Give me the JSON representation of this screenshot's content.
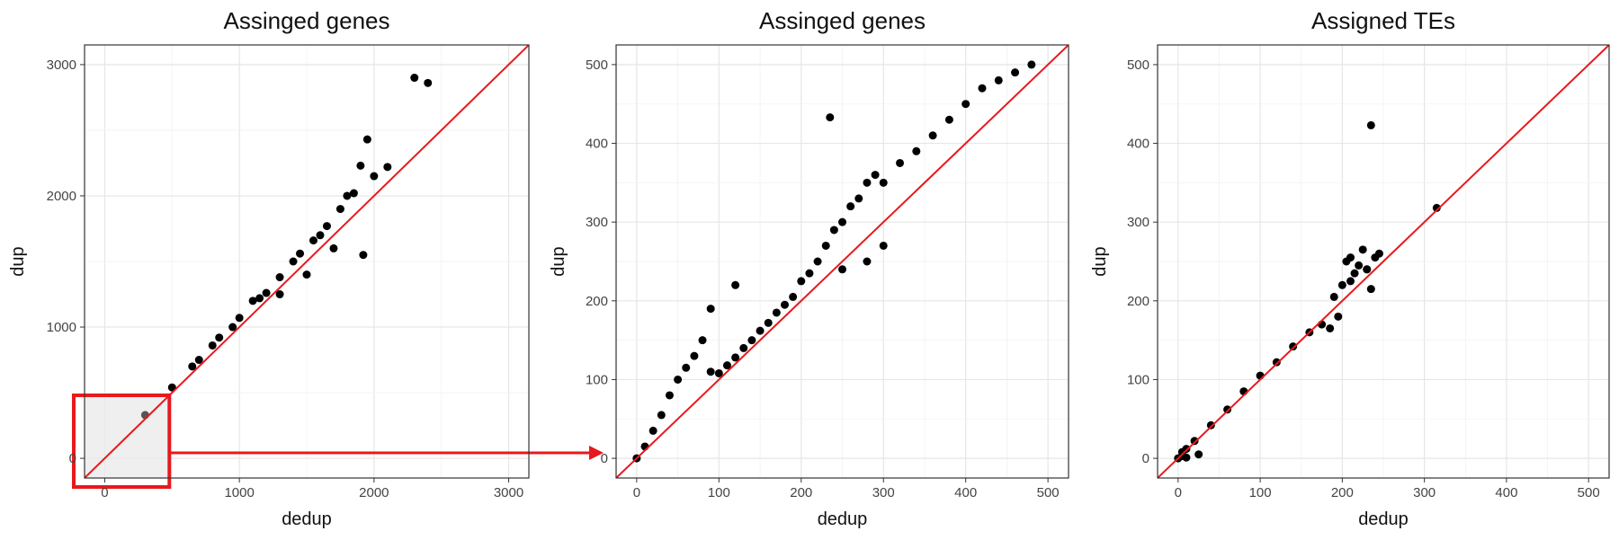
{
  "chart_data": [
    {
      "type": "scatter",
      "title": "Assinged genes",
      "xlabel": "dedup",
      "ylabel": "dup",
      "xlim": [
        -150,
        3150
      ],
      "ylim": [
        -150,
        3150
      ],
      "xticks": [
        0,
        1000,
        2000,
        3000
      ],
      "yticks": [
        0,
        1000,
        2000,
        3000
      ],
      "grid": true,
      "reference_line": {
        "slope": 1,
        "intercept": 0,
        "color": "#e8191c"
      },
      "zoom_box": {
        "x": [
          -150,
          480
        ],
        "y": [
          -150,
          480
        ],
        "color": "#e8191c"
      },
      "point_color": "#000000",
      "series": [
        {
          "x": [
            300,
            500,
            700,
            850,
            1000,
            1150,
            1300,
            1450,
            1550,
            1650,
            1750,
            1850,
            1900,
            1950,
            2100,
            2300,
            2400,
            1920,
            1700,
            1500,
            1300,
            1800,
            2000,
            1600,
            1400,
            1200,
            1100,
            950,
            800,
            650
          ],
          "y": [
            330,
            540,
            750,
            920,
            1070,
            1220,
            1380,
            1560,
            1660,
            1770,
            1900,
            2020,
            2230,
            2430,
            2220,
            2900,
            2860,
            1550,
            1600,
            1400,
            1250,
            2000,
            2150,
            1700,
            1500,
            1260,
            1200,
            1000,
            860,
            700
          ]
        }
      ]
    },
    {
      "type": "scatter",
      "title": "Assinged genes",
      "xlabel": "dedup",
      "ylabel": "dup",
      "xlim": [
        -25,
        525
      ],
      "ylim": [
        -25,
        525
      ],
      "xticks": [
        0,
        100,
        200,
        300,
        400,
        500
      ],
      "yticks": [
        0,
        100,
        200,
        300,
        400,
        500
      ],
      "grid": true,
      "reference_line": {
        "slope": 1,
        "intercept": 0,
        "color": "#e8191c"
      },
      "point_color": "#000000",
      "series": [
        {
          "x": [
            0,
            10,
            20,
            30,
            40,
            50,
            60,
            70,
            80,
            90,
            100,
            110,
            120,
            130,
            140,
            150,
            160,
            170,
            180,
            190,
            200,
            210,
            220,
            230,
            240,
            250,
            260,
            270,
            280,
            290,
            300,
            320,
            340,
            360,
            380,
            400,
            420,
            440,
            460,
            480,
            235,
            90,
            120,
            250,
            280,
            300
          ],
          "y": [
            0,
            15,
            35,
            55,
            80,
            100,
            115,
            130,
            150,
            110,
            108,
            118,
            128,
            140,
            150,
            162,
            172,
            185,
            195,
            205,
            225,
            235,
            250,
            270,
            290,
            300,
            320,
            330,
            350,
            360,
            350,
            375,
            390,
            410,
            430,
            450,
            470,
            480,
            490,
            500,
            433,
            190,
            220,
            240,
            250,
            270
          ]
        }
      ]
    },
    {
      "type": "scatter",
      "title": "Assigned TEs",
      "xlabel": "dedup",
      "ylabel": "dup",
      "xlim": [
        -25,
        525
      ],
      "ylim": [
        -25,
        525
      ],
      "xticks": [
        0,
        100,
        200,
        300,
        400,
        500
      ],
      "yticks": [
        0,
        100,
        200,
        300,
        400,
        500
      ],
      "grid": true,
      "reference_line": {
        "slope": 1,
        "intercept": 0,
        "color": "#e8191c"
      },
      "point_color": "#000000",
      "series": [
        {
          "x": [
            0,
            5,
            10,
            20,
            25,
            40,
            60,
            80,
            100,
            120,
            140,
            160,
            175,
            185,
            190,
            200,
            205,
            210,
            215,
            220,
            225,
            230,
            235,
            240,
            235,
            245,
            195,
            210,
            230,
            315,
            5,
            10
          ],
          "y": [
            0,
            8,
            12,
            22,
            5,
            42,
            62,
            85,
            105,
            122,
            142,
            160,
            170,
            165,
            205,
            220,
            250,
            255,
            235,
            245,
            265,
            240,
            215,
            255,
            423,
            260,
            180,
            225,
            240,
            318,
            3,
            1
          ]
        }
      ]
    }
  ]
}
